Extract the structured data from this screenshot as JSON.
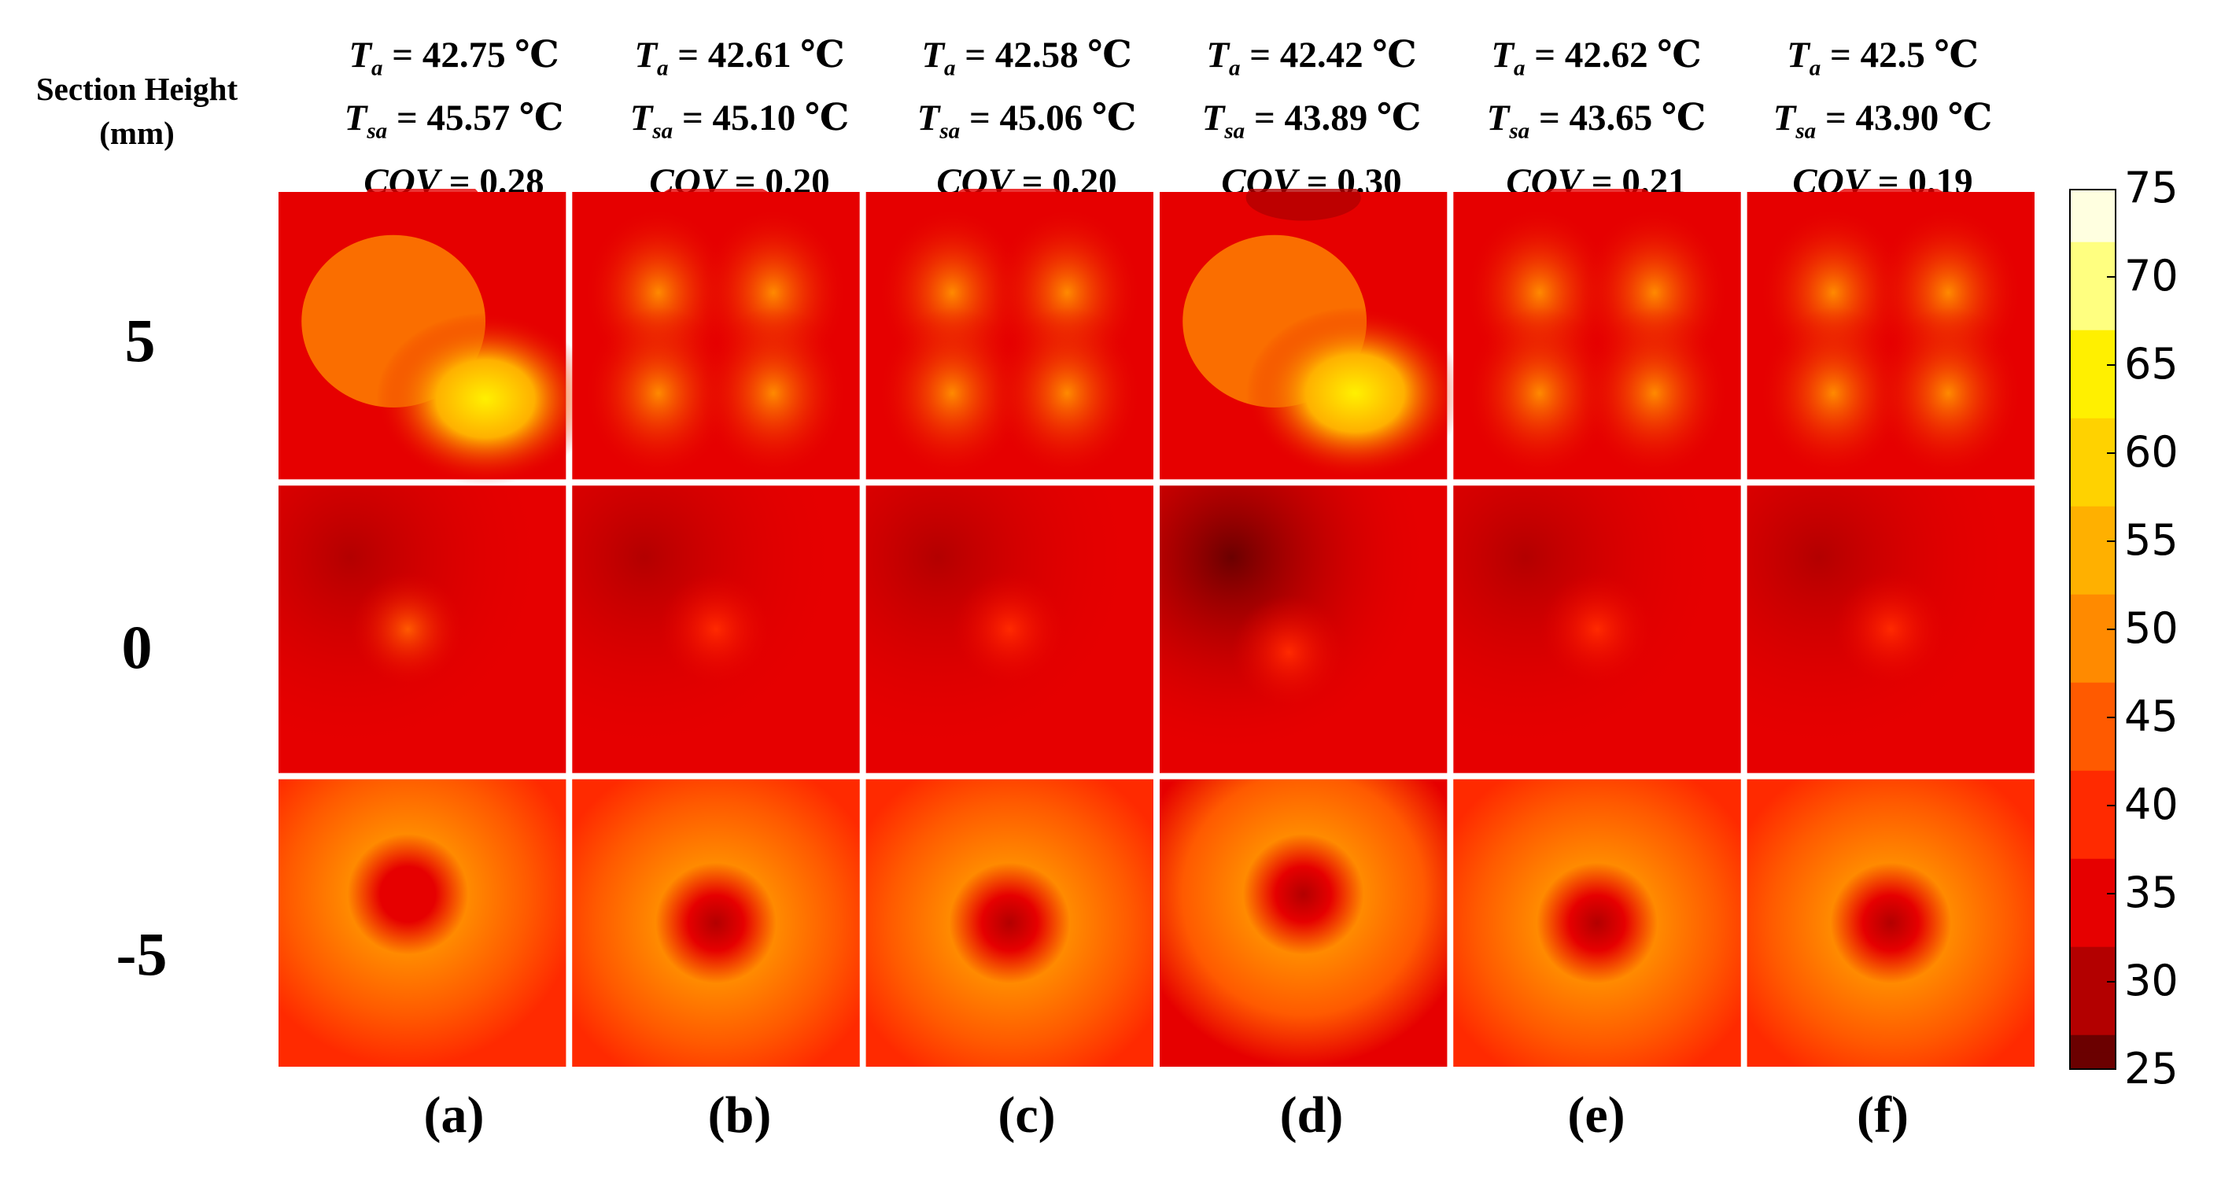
{
  "row_header": {
    "line1": "Section Height",
    "line2": "(mm)"
  },
  "rows": [
    "5",
    "0",
    "-5"
  ],
  "columns": [
    {
      "label": "(a)",
      "ta": "42.75 ℃",
      "tsa": "45.57 ℃",
      "cov": "0.28"
    },
    {
      "label": "(b)",
      "ta": "42.61 ℃",
      "tsa": "45.10 ℃",
      "cov": "0.20"
    },
    {
      "label": "(c)",
      "ta": "42.58 ℃",
      "tsa": "45.06 ℃",
      "cov": "0.20"
    },
    {
      "label": "(d)",
      "ta": "42.42 ℃",
      "tsa": "43.89 ℃",
      "cov": "0.30"
    },
    {
      "label": "(e)",
      "ta": "42.62 ℃",
      "tsa": "43.65 ℃",
      "cov": "0.21"
    },
    {
      "label": "(f)",
      "ta": "42.5 ℃",
      "tsa": "43.90 ℃",
      "cov": "0.19"
    }
  ],
  "stat_symbols": {
    "ta": "T",
    "ta_sub": "a",
    "tsa": "T",
    "tsa_sub": "sa",
    "cov": "COV",
    "eq": " = "
  },
  "chart_data": {
    "type": "heatmap",
    "row_labels": [
      "5",
      "0",
      "-5"
    ],
    "col_labels": [
      "(a)",
      "(b)",
      "(c)",
      "(d)",
      "(e)",
      "(f)"
    ],
    "value_range": [
      25,
      75
    ],
    "colorbar_ticks": [
      25,
      30,
      35,
      40,
      45,
      50,
      55,
      60,
      65,
      70,
      75
    ],
    "colormap": [
      "#6b0000",
      "#b30000",
      "#e60000",
      "#ff2a00",
      "#ff5a00",
      "#ff8a00",
      "#ffb000",
      "#ffd200",
      "#fff000",
      "#ffff80",
      "#ffffe0"
    ],
    "panels": [
      [
        {
          "base": 36,
          "pattern": "hotspot",
          "peak": 63,
          "hx": 0.72,
          "hy": 0.72,
          "cold": 33
        },
        {
          "base": 37,
          "pattern": "grid4",
          "peak": 48,
          "cold": 34
        },
        {
          "base": 37,
          "pattern": "grid4",
          "peak": 48,
          "cold": 34
        },
        {
          "base": 36,
          "pattern": "hotspot",
          "peak": 64,
          "hx": 0.68,
          "hy": 0.7,
          "cold": 30
        },
        {
          "base": 37,
          "pattern": "grid4",
          "peak": 52,
          "cold": 34
        },
        {
          "base": 37,
          "pattern": "grid4",
          "peak": 51,
          "cold": 34
        }
      ],
      [
        {
          "base": 34,
          "pattern": "centerspot",
          "peak": 43,
          "hx": 0.45,
          "hy": 0.5,
          "cold": 30
        },
        {
          "base": 35,
          "pattern": "centerspot",
          "peak": 41,
          "hx": 0.5,
          "hy": 0.5,
          "cold": 30
        },
        {
          "base": 35,
          "pattern": "centerspot",
          "peak": 42,
          "hx": 0.5,
          "hy": 0.5,
          "cold": 30
        },
        {
          "base": 33,
          "pattern": "centerspot",
          "peak": 42,
          "hx": 0.45,
          "hy": 0.58,
          "cold": 25
        },
        {
          "base": 34,
          "pattern": "centerspot",
          "peak": 41,
          "hx": 0.5,
          "hy": 0.5,
          "cold": 30
        },
        {
          "base": 34,
          "pattern": "centerspot",
          "peak": 41,
          "hx": 0.5,
          "hy": 0.5,
          "cold": 30
        }
      ],
      [
        {
          "base": 45,
          "pattern": "ring",
          "peak": 51,
          "cold": 33,
          "hx": 0.45,
          "hy": 0.4
        },
        {
          "base": 44,
          "pattern": "ring",
          "peak": 49,
          "cold": 32,
          "hx": 0.5,
          "hy": 0.5
        },
        {
          "base": 44,
          "pattern": "ring",
          "peak": 49,
          "cold": 32,
          "hx": 0.5,
          "hy": 0.5
        },
        {
          "base": 43,
          "pattern": "ring",
          "peak": 51,
          "cold": 31,
          "hx": 0.5,
          "hy": 0.4
        },
        {
          "base": 44,
          "pattern": "ring",
          "peak": 49,
          "cold": 32,
          "hx": 0.5,
          "hy": 0.5
        },
        {
          "base": 44,
          "pattern": "ring",
          "peak": 49,
          "cold": 32,
          "hx": 0.5,
          "hy": 0.5
        }
      ]
    ]
  }
}
